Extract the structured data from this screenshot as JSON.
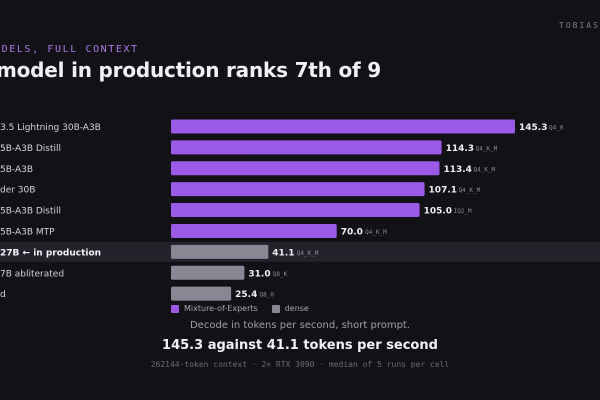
{
  "brand": "TOBIAS",
  "eyebrow": "ODELS, FULL CONTEXT",
  "title": "model in production ranks 7th of 9",
  "caption": "Decode in tokens per second, short prompt.",
  "headline": "145.3 against 41.1 tokens per second",
  "footer": "262144-token context · 2× RTX 3090 · median of 5 runs per cell",
  "colors": {
    "moe": "#9a5ae6",
    "dense": "#8a8794",
    "highlight_row": "#24222b",
    "background": "#121116"
  },
  "legend": [
    {
      "label": "Mixture-of-Experts",
      "color": "#9a5ae6"
    },
    {
      "label": "dense",
      "color": "#8a8794"
    }
  ],
  "chart_data": {
    "type": "bar",
    "orientation": "horizontal",
    "categories": [
      "3.5 Lightning 30B-A3B",
      "5B-A3B Distill",
      "5B-A3B",
      "der 30B",
      "5B-A3B Distill",
      "5B-A3B MTP",
      "27B ← in production",
      "7B abliterated",
      "d"
    ],
    "values": [
      145.3,
      114.3,
      113.4,
      107.1,
      105.0,
      70.0,
      41.1,
      31.0,
      25.4
    ],
    "value_labels": [
      "145.3",
      "114.3",
      "113.4",
      "107.1",
      "105.0",
      "70.0",
      "41.1",
      "31.0",
      "25.4"
    ],
    "quant": [
      "Q4_0",
      "Q4_K_M",
      "Q4_K_M",
      "Q4_K_M",
      "IQ2_M",
      "Q4_K_M",
      "Q4_K_M",
      "Q8_K",
      "Q8_0"
    ],
    "kind": [
      "moe",
      "moe",
      "moe",
      "moe",
      "moe",
      "moe",
      "dense",
      "dense",
      "dense"
    ],
    "highlight_index": 6,
    "xlim": [
      0,
      145.3
    ],
    "grid": false,
    "legend_position": "bottom"
  }
}
